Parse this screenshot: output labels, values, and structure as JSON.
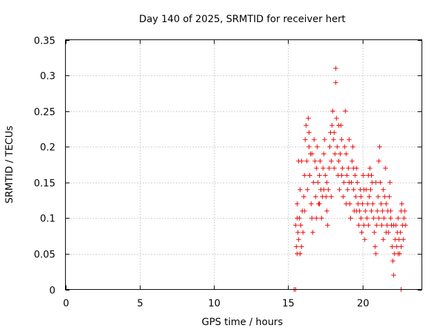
{
  "chart_data": {
    "type": "scatter",
    "title": "Day 140 of 2025, SRMTID for receiver hert",
    "xlabel": "GPS time / hours",
    "ylabel": "SRMTID / TECUs",
    "xlim": [
      0,
      24
    ],
    "ylim": [
      0,
      0.35
    ],
    "xticks": [
      "0",
      "5",
      "10",
      "15",
      "20"
    ],
    "yticks": [
      "0",
      "0.05",
      "0.1",
      "0.15",
      "0.2",
      "0.25",
      "0.3",
      "0.35"
    ],
    "grid": true,
    "marker": "plus",
    "color": "#ee0000",
    "series": [
      {
        "points": [
          [
            15.4,
            0.0
          ],
          [
            15.5,
            0.0
          ],
          [
            15.5,
            0.09
          ],
          [
            15.55,
            0.06
          ],
          [
            15.6,
            0.05
          ],
          [
            15.6,
            0.12
          ],
          [
            15.65,
            0.08
          ],
          [
            15.7,
            0.18
          ],
          [
            15.7,
            0.07
          ],
          [
            15.75,
            0.1
          ],
          [
            15.8,
            0.05
          ],
          [
            15.8,
            0.14
          ],
          [
            15.85,
            0.09
          ],
          [
            15.9,
            0.06
          ],
          [
            15.95,
            0.11
          ],
          [
            16.0,
            0.08
          ],
          [
            16.05,
            0.13
          ],
          [
            16.1,
            0.16
          ],
          [
            16.15,
            0.21
          ],
          [
            16.2,
            0.23
          ],
          [
            16.25,
            0.18
          ],
          [
            16.3,
            0.14
          ],
          [
            16.35,
            0.24
          ],
          [
            16.4,
            0.2
          ],
          [
            16.45,
            0.16
          ],
          [
            16.5,
            0.19
          ],
          [
            16.55,
            0.12
          ],
          [
            16.6,
            0.1
          ],
          [
            16.65,
            0.08
          ],
          [
            16.7,
            0.15
          ],
          [
            16.75,
            0.21
          ],
          [
            16.8,
            0.18
          ],
          [
            16.85,
            0.13
          ],
          [
            16.9,
            0.17
          ],
          [
            16.95,
            0.2
          ],
          [
            17.0,
            0.15
          ],
          [
            17.05,
            0.12
          ],
          [
            17.1,
            0.16
          ],
          [
            17.15,
            0.18
          ],
          [
            17.2,
            0.14
          ],
          [
            17.25,
            0.1
          ],
          [
            17.3,
            0.13
          ],
          [
            17.35,
            0.17
          ],
          [
            17.4,
            0.19
          ],
          [
            17.45,
            0.21
          ],
          [
            17.5,
            0.16
          ],
          [
            17.55,
            0.13
          ],
          [
            17.6,
            0.11
          ],
          [
            17.65,
            0.09
          ],
          [
            17.7,
            0.14
          ],
          [
            17.75,
            0.17
          ],
          [
            17.8,
            0.2
          ],
          [
            17.85,
            0.22
          ],
          [
            17.9,
            0.18
          ],
          [
            17.95,
            0.23
          ],
          [
            18.0,
            0.25
          ],
          [
            18.05,
            0.21
          ],
          [
            18.1,
            0.17
          ],
          [
            18.15,
            0.19
          ],
          [
            18.2,
            0.31
          ],
          [
            18.2,
            0.29
          ],
          [
            18.25,
            0.24
          ],
          [
            18.3,
            0.2
          ],
          [
            18.35,
            0.16
          ],
          [
            18.4,
            0.18
          ],
          [
            18.45,
            0.14
          ],
          [
            18.5,
            0.19
          ],
          [
            18.55,
            0.23
          ],
          [
            18.6,
            0.21
          ],
          [
            18.65,
            0.17
          ],
          [
            18.7,
            0.13
          ],
          [
            18.75,
            0.15
          ],
          [
            18.8,
            0.2
          ],
          [
            18.85,
            0.25
          ],
          [
            18.9,
            0.19
          ],
          [
            18.95,
            0.16
          ],
          [
            19.0,
            0.14
          ],
          [
            19.05,
            0.17
          ],
          [
            19.1,
            0.21
          ],
          [
            19.15,
            0.12
          ],
          [
            19.2,
            0.1
          ],
          [
            19.25,
            0.15
          ],
          [
            19.3,
            0.18
          ],
          [
            19.35,
            0.2
          ],
          [
            19.4,
            0.14
          ],
          [
            19.45,
            0.11
          ],
          [
            19.5,
            0.16
          ],
          [
            19.55,
            0.13
          ],
          [
            19.6,
            0.17
          ],
          [
            19.65,
            0.15
          ],
          [
            19.7,
            0.12
          ],
          [
            19.75,
            0.09
          ],
          [
            19.8,
            0.11
          ],
          [
            19.85,
            0.14
          ],
          [
            19.9,
            0.1
          ],
          [
            19.95,
            0.08
          ],
          [
            20.0,
            0.12
          ],
          [
            20.05,
            0.16
          ],
          [
            20.1,
            0.09
          ],
          [
            20.15,
            0.07
          ],
          [
            20.2,
            0.11
          ],
          [
            20.25,
            0.14
          ],
          [
            20.3,
            0.1
          ],
          [
            20.35,
            0.12
          ],
          [
            20.4,
            0.16
          ],
          [
            20.45,
            0.13
          ],
          [
            20.5,
            0.17
          ],
          [
            20.55,
            0.14
          ],
          [
            20.6,
            0.11
          ],
          [
            20.65,
            0.15
          ],
          [
            20.7,
            0.12
          ],
          [
            20.75,
            0.1
          ],
          [
            20.8,
            0.08
          ],
          [
            20.85,
            0.06
          ],
          [
            20.9,
            0.05
          ],
          [
            20.95,
            0.09
          ],
          [
            21.0,
            0.11
          ],
          [
            21.05,
            0.13
          ],
          [
            21.1,
            0.18
          ],
          [
            21.15,
            0.2
          ],
          [
            21.2,
            0.15
          ],
          [
            21.25,
            0.12
          ],
          [
            21.3,
            0.09
          ],
          [
            21.35,
            0.11
          ],
          [
            21.4,
            0.07
          ],
          [
            21.45,
            0.1
          ],
          [
            21.5,
            0.13
          ],
          [
            21.55,
            0.17
          ],
          [
            21.6,
            0.12
          ],
          [
            21.65,
            0.09
          ],
          [
            21.7,
            0.11
          ],
          [
            21.75,
            0.08
          ],
          [
            21.8,
            0.13
          ],
          [
            21.85,
            0.15
          ],
          [
            21.9,
            0.11
          ],
          [
            21.95,
            0.09
          ],
          [
            22.0,
            0.06
          ],
          [
            22.05,
            0.04
          ],
          [
            22.1,
            0.02
          ],
          [
            22.15,
            0.05
          ],
          [
            22.2,
            0.07
          ],
          [
            22.25,
            0.09
          ],
          [
            22.3,
            0.06
          ],
          [
            22.35,
            0.08
          ],
          [
            22.4,
            0.1
          ],
          [
            22.45,
            0.07
          ],
          [
            22.5,
            0.05
          ],
          [
            22.55,
            0.08
          ],
          [
            22.6,
            0.11
          ],
          [
            22.65,
            0.12
          ],
          [
            22.7,
            0.09
          ],
          [
            22.75,
            0.07
          ],
          [
            22.8,
            0.1
          ],
          [
            22.85,
            0.11
          ],
          [
            22.6,
            0.0
          ],
          [
            15.6,
            0.1
          ],
          [
            16.1,
            0.11
          ],
          [
            16.6,
            0.19
          ],
          [
            17.1,
            0.12
          ],
          [
            17.6,
            0.15
          ],
          [
            18.1,
            0.22
          ],
          [
            18.6,
            0.16
          ],
          [
            19.1,
            0.15
          ],
          [
            19.6,
            0.11
          ],
          [
            20.1,
            0.14
          ],
          [
            20.6,
            0.16
          ],
          [
            21.1,
            0.1
          ],
          [
            21.6,
            0.08
          ],
          [
            22.1,
            0.09
          ],
          [
            22.6,
            0.06
          ],
          [
            15.9,
            0.18
          ],
          [
            16.4,
            0.22
          ],
          [
            16.9,
            0.1
          ],
          [
            17.4,
            0.14
          ],
          [
            17.9,
            0.13
          ],
          [
            18.4,
            0.23
          ],
          [
            18.9,
            0.12
          ],
          [
            19.4,
            0.17
          ],
          [
            19.9,
            0.13
          ],
          [
            20.4,
            0.09
          ],
          [
            20.9,
            0.15
          ],
          [
            21.4,
            0.14
          ],
          [
            21.9,
            0.1
          ],
          [
            22.4,
            0.05
          ],
          [
            22.9,
            0.09
          ]
        ]
      }
    ]
  }
}
